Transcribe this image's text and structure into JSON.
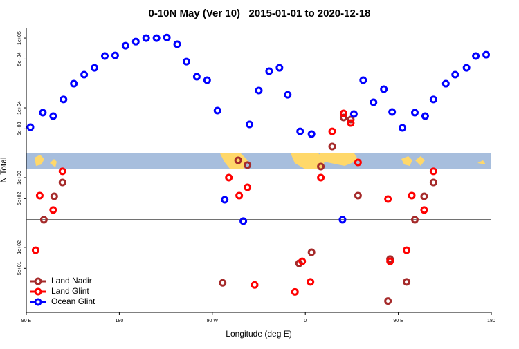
{
  "chart_data": {
    "type": "scatter",
    "title": "0-10N May (Ver 10)   2015-01-01 to 2020-12-18",
    "x_label": "Longitude (deg E)",
    "y_label": "N Total",
    "xlim": [
      90,
      540
    ],
    "xticks": [
      {
        "value": 90,
        "label": "90 E"
      },
      {
        "value": 180,
        "label": "180"
      },
      {
        "value": 270,
        "label": "90 W"
      },
      {
        "value": 360,
        "label": "0"
      },
      {
        "value": 450,
        "label": "90 E"
      },
      {
        "value": 540,
        "label": "180"
      }
    ],
    "ylim": [
      11.7,
      141000
    ],
    "log_y": true,
    "yticks": [
      {
        "value": 50,
        "label": "5e+01"
      },
      {
        "value": 100,
        "label": "1e+02"
      },
      {
        "value": 500,
        "label": "5e+02"
      },
      {
        "value": 1000,
        "label": "1e+03"
      },
      {
        "value": 5000,
        "label": "5e+03"
      },
      {
        "value": 10000,
        "label": "1e+04"
      },
      {
        "value": 50000,
        "label": "5e+04"
      },
      {
        "value": 100000,
        "label": "1e+05"
      }
    ],
    "reference_line": 250,
    "legend": "bottom left",
    "series": [
      {
        "name": "Land Nadir",
        "color": "#a52a2a",
        "x": [
          107,
          117,
          125,
          280,
          295,
          304,
          354,
          366,
          375,
          386,
          397,
          404,
          411,
          440,
          442,
          458,
          466,
          475,
          484
        ],
        "values": [
          249,
          540,
          853,
          31,
          1770,
          1510,
          59,
          85,
          1440,
          2790,
          7270,
          6790,
          553,
          17,
          68,
          32,
          249,
          540,
          853
        ]
      },
      {
        "name": "Land Glint",
        "color": "#ff0000",
        "x": [
          99,
          103,
          116,
          125,
          286,
          296,
          304,
          311,
          350,
          357,
          365,
          375,
          386,
          397,
          404,
          411,
          440,
          442,
          458,
          463,
          475,
          484
        ],
        "values": [
          91,
          553,
          343,
          1230,
          1000,
          553,
          727,
          29,
          23,
          63,
          32,
          1000,
          4600,
          8340,
          6050,
          1650,
          493,
          63,
          91,
          553,
          343,
          1230
        ]
      },
      {
        "name": "Ocean Glint",
        "color": "#0000ff",
        "x": [
          94,
          106,
          116,
          126,
          136,
          146,
          156,
          166,
          176,
          186,
          196,
          206,
          216,
          226,
          236,
          245,
          255,
          265,
          275,
          282,
          300,
          306,
          315,
          325,
          335,
          343,
          355,
          366,
          396,
          407,
          416,
          426,
          436,
          444,
          454,
          466,
          476,
          484,
          496,
          505,
          516,
          525,
          535
        ],
        "values": [
          5280,
          8530,
          7610,
          13200,
          22200,
          29900,
          37500,
          55300,
          56500,
          77800,
          89000,
          100000,
          100000,
          102000,
          81500,
          46000,
          27900,
          24900,
          9130,
          482,
          238,
          5790,
          17700,
          33500,
          37500,
          15400,
          4600,
          4210,
          249,
          8150,
          24900,
          12000,
          18500,
          8720,
          5160,
          8530,
          7610,
          13200,
          22200,
          29900,
          37500,
          55300,
          57800
        ]
      }
    ]
  }
}
